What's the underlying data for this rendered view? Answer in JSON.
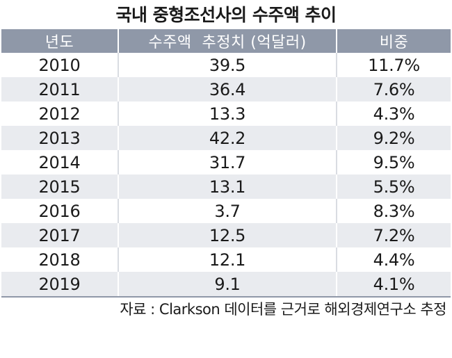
{
  "chart_data": {
    "type": "table",
    "title": "국내 중형조선사의 수주액 추이",
    "columns": [
      "년도",
      "수주액  추정치 (억달러)",
      "비중"
    ],
    "rows": [
      [
        "2010",
        "39.5",
        "11.7%"
      ],
      [
        "2011",
        "36.4",
        "7.6%"
      ],
      [
        "2012",
        "13.3",
        "4.3%"
      ],
      [
        "2013",
        "42.2",
        "9.2%"
      ],
      [
        "2014",
        "31.7",
        "9.5%"
      ],
      [
        "2015",
        "13.1",
        "5.5%"
      ],
      [
        "2016",
        "3.7",
        "8.3%"
      ],
      [
        "2017",
        "12.5",
        "7.2%"
      ],
      [
        "2018",
        "12.1",
        "4.4%"
      ],
      [
        "2019",
        "9.1",
        "4.1%"
      ]
    ],
    "source": "자료 : Clarkson 데이터를 근거로 해외경제연구소 추정"
  },
  "colors": {
    "header_bg": "#8f98a8",
    "header_text": "#ffffff",
    "stripe_bg": "#e9ebef",
    "text": "#1a1a1a"
  }
}
